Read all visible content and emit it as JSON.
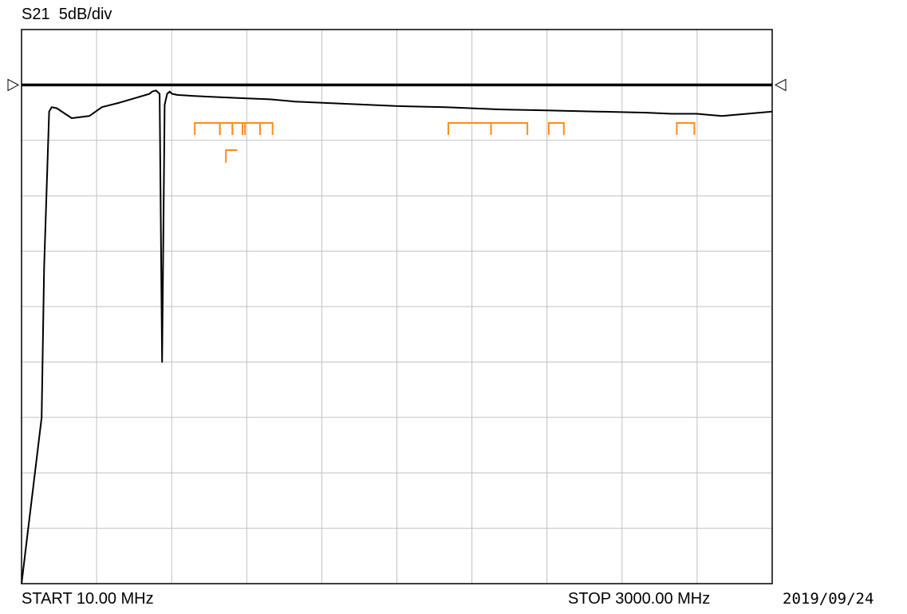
{
  "header": {
    "measurement": "S21",
    "scale": "5dB/div"
  },
  "footer": {
    "start": "START 10.00 MHz",
    "stop": "STOP 3000.00 MHz",
    "date": "2019/09/24"
  },
  "colors": {
    "trace": "#000000",
    "grid": "#c0c0c0",
    "markers": "#ff8c1a",
    "reference": "#000000"
  },
  "chart_data": {
    "type": "line",
    "title": "",
    "xlabel": "",
    "ylabel": "",
    "x_unit": "MHz",
    "y_unit": "dB",
    "xlim": [
      10,
      3000
    ],
    "ylim": [
      -45,
      5
    ],
    "grid": true,
    "divisions": {
      "x": 10,
      "y": 10
    },
    "reference_level": 0,
    "series": [
      {
        "x": [
          10,
          90,
          100,
          120,
          130,
          150,
          210,
          280,
          330,
          400,
          460,
          520,
          530,
          545,
          560,
          570,
          580,
          590,
          600,
          610,
          630,
          700,
          800,
          900,
          1000,
          1100,
          1200,
          1300,
          1500,
          1700,
          1900,
          2100,
          2300,
          2500,
          2600,
          2700,
          2800,
          2900,
          3000
        ],
        "y": [
          -45.0,
          -30.0,
          -16.5,
          -2.4,
          -2.0,
          -2.1,
          -3.0,
          -2.8,
          -2.0,
          -1.6,
          -1.2,
          -0.8,
          -0.6,
          -0.5,
          -0.8,
          -25.0,
          -1.8,
          -0.8,
          -0.6,
          -0.8,
          -0.9,
          -1.0,
          -1.1,
          -1.2,
          -1.3,
          -1.5,
          -1.6,
          -1.7,
          -1.9,
          -2.0,
          -2.2,
          -2.3,
          -2.4,
          -2.5,
          -2.6,
          -2.6,
          -2.8,
          -2.6,
          -2.4
        ]
      }
    ],
    "bandplan_markers": [
      {
        "row": 1,
        "start": 700,
        "end": 800
      },
      {
        "row": 1,
        "start": 800,
        "end": 850
      },
      {
        "row": 1,
        "start": 850,
        "end": 900
      },
      {
        "row": 1,
        "start": 890,
        "end": 960
      },
      {
        "row": 1,
        "start": 960,
        "end": 1010
      },
      {
        "row": 1,
        "start": 1710,
        "end": 1880
      },
      {
        "row": 1,
        "start": 1880,
        "end": 2025
      },
      {
        "row": 1,
        "start": 2110,
        "end": 2170
      },
      {
        "row": 1,
        "start": 2620,
        "end": 2690
      },
      {
        "row": 2,
        "start": 824,
        "end": 870
      }
    ]
  }
}
